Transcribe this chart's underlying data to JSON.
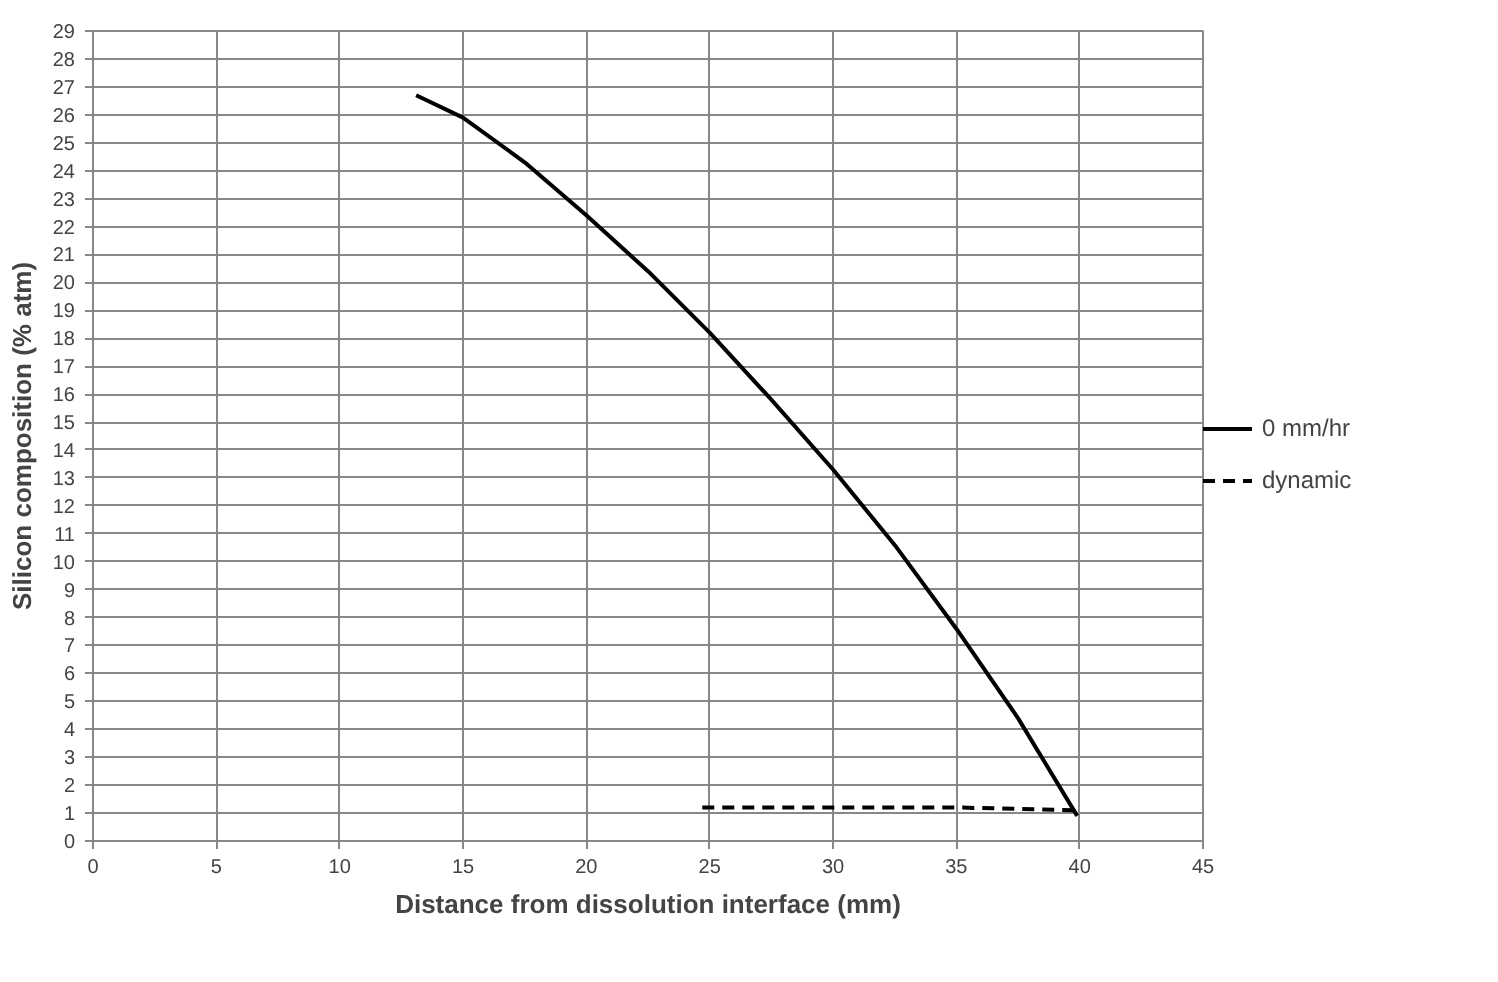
{
  "chart_data": {
    "type": "line",
    "xlabel": "Distance from dissolution interface (mm)",
    "ylabel": "Silicon composition (% atm)",
    "xlim": [
      0,
      45
    ],
    "xticks": [
      0,
      5,
      10,
      15,
      20,
      25,
      30,
      35,
      40,
      45
    ],
    "ylim": [
      0,
      29
    ],
    "yticks": [
      0,
      1,
      2,
      3,
      4,
      5,
      6,
      7,
      8,
      9,
      10,
      11,
      12,
      13,
      14,
      15,
      16,
      17,
      18,
      19,
      20,
      21,
      22,
      23,
      24,
      25,
      26,
      27,
      28,
      29
    ],
    "grid": true,
    "legend": "right",
    "marker": "none",
    "series": [
      {
        "name": "0 mm/hr",
        "color": "#000000",
        "line_style": "solid",
        "x": [
          13.1,
          15,
          17.5,
          20,
          22.5,
          25,
          27.5,
          30,
          32.5,
          35,
          37.5,
          39.9
        ],
        "values": [
          26.7,
          25.9,
          24.3,
          22.4,
          20.4,
          18.2,
          15.8,
          13.3,
          10.6,
          7.6,
          4.4,
          0.9
        ]
      },
      {
        "name": "dynamic",
        "color": "#000000",
        "line_style": "dashed",
        "x": [
          24.7,
          30,
          35,
          40
        ],
        "values": [
          1.2,
          1.2,
          1.2,
          1.1
        ]
      }
    ]
  }
}
